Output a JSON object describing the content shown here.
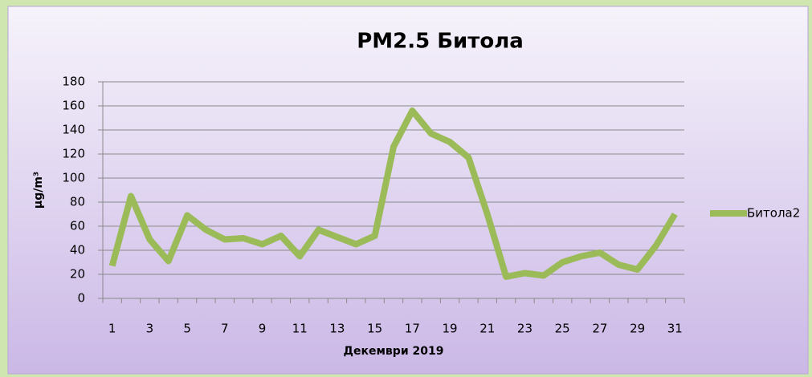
{
  "chart_data": {
    "type": "line",
    "title": "PM2.5 Битола",
    "x_label": "Декември 2019",
    "y_label": "µg/m³",
    "categories": [
      1,
      null,
      3,
      null,
      5,
      null,
      7,
      null,
      9,
      null,
      11,
      null,
      13,
      null,
      15,
      null,
      17,
      null,
      19,
      null,
      21,
      null,
      23,
      null,
      25,
      null,
      27,
      null,
      29,
      null,
      31
    ],
    "series": [
      {
        "name": "Битола2",
        "color": "#9bbb59",
        "values": [
          27,
          85,
          49,
          31,
          69,
          57,
          49,
          50,
          45,
          52,
          35,
          57,
          51,
          45,
          52,
          126,
          156,
          137,
          130,
          117,
          70,
          18,
          21,
          19,
          30,
          35,
          38,
          28,
          24,
          44,
          70
        ]
      }
    ],
    "ylim": [
      0,
      180
    ],
    "yticks": [
      0,
      20,
      40,
      60,
      80,
      100,
      120,
      140,
      160,
      180
    ],
    "grid": true,
    "legend": "right"
  }
}
